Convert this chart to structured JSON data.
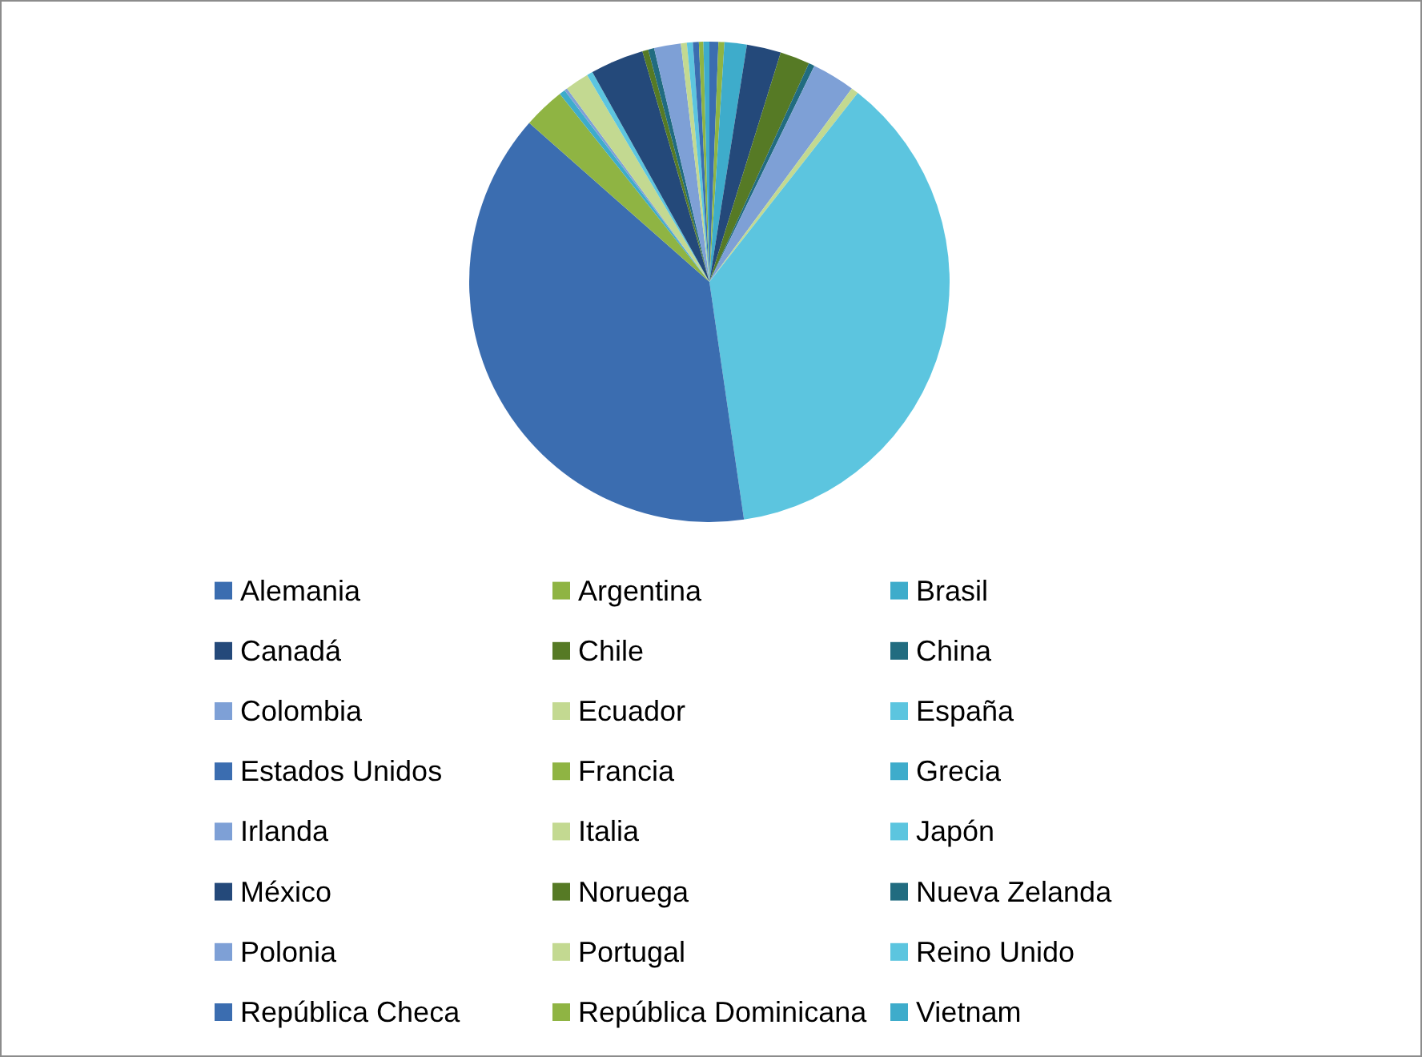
{
  "chart_data": {
    "type": "pie",
    "categories": [
      "Alemania",
      "Argentina",
      "Brasil",
      "Canadá",
      "Chile",
      "China",
      "Colombia",
      "Ecuador",
      "España",
      "Estados Unidos",
      "Francia",
      "Grecia",
      "Irlanda",
      "Italia",
      "Japón",
      "México",
      "Noruega",
      "Nueva Zelanda",
      "Polonia",
      "Portugal",
      "Reino Unido",
      "República Checa",
      "República Dominicana",
      "Vietnam"
    ],
    "values": [
      0.6,
      0.4,
      1.5,
      2.3,
      2.0,
      0.4,
      2.9,
      0.5,
      37.1,
      38.8,
      2.8,
      0.4,
      0.2,
      1.6,
      0.4,
      3.6,
      0.4,
      0.4,
      1.8,
      0.4,
      0.4,
      0.4,
      0.3,
      0.4
    ],
    "colors": [
      "#3b6db0",
      "#8fb443",
      "#3eaccb",
      "#24497a",
      "#567a25",
      "#216c80",
      "#7ea0d6",
      "#c3d991",
      "#5cc5df",
      "#3b6db0",
      "#8fb443",
      "#3eaccb",
      "#7ea0d6",
      "#c3d991",
      "#5cc5df",
      "#24497a",
      "#567a25",
      "#216c80",
      "#7ea0d6",
      "#c3d991",
      "#5cc5df",
      "#3b6db0",
      "#8fb443",
      "#3eaccb"
    ],
    "legend": "bottom"
  }
}
